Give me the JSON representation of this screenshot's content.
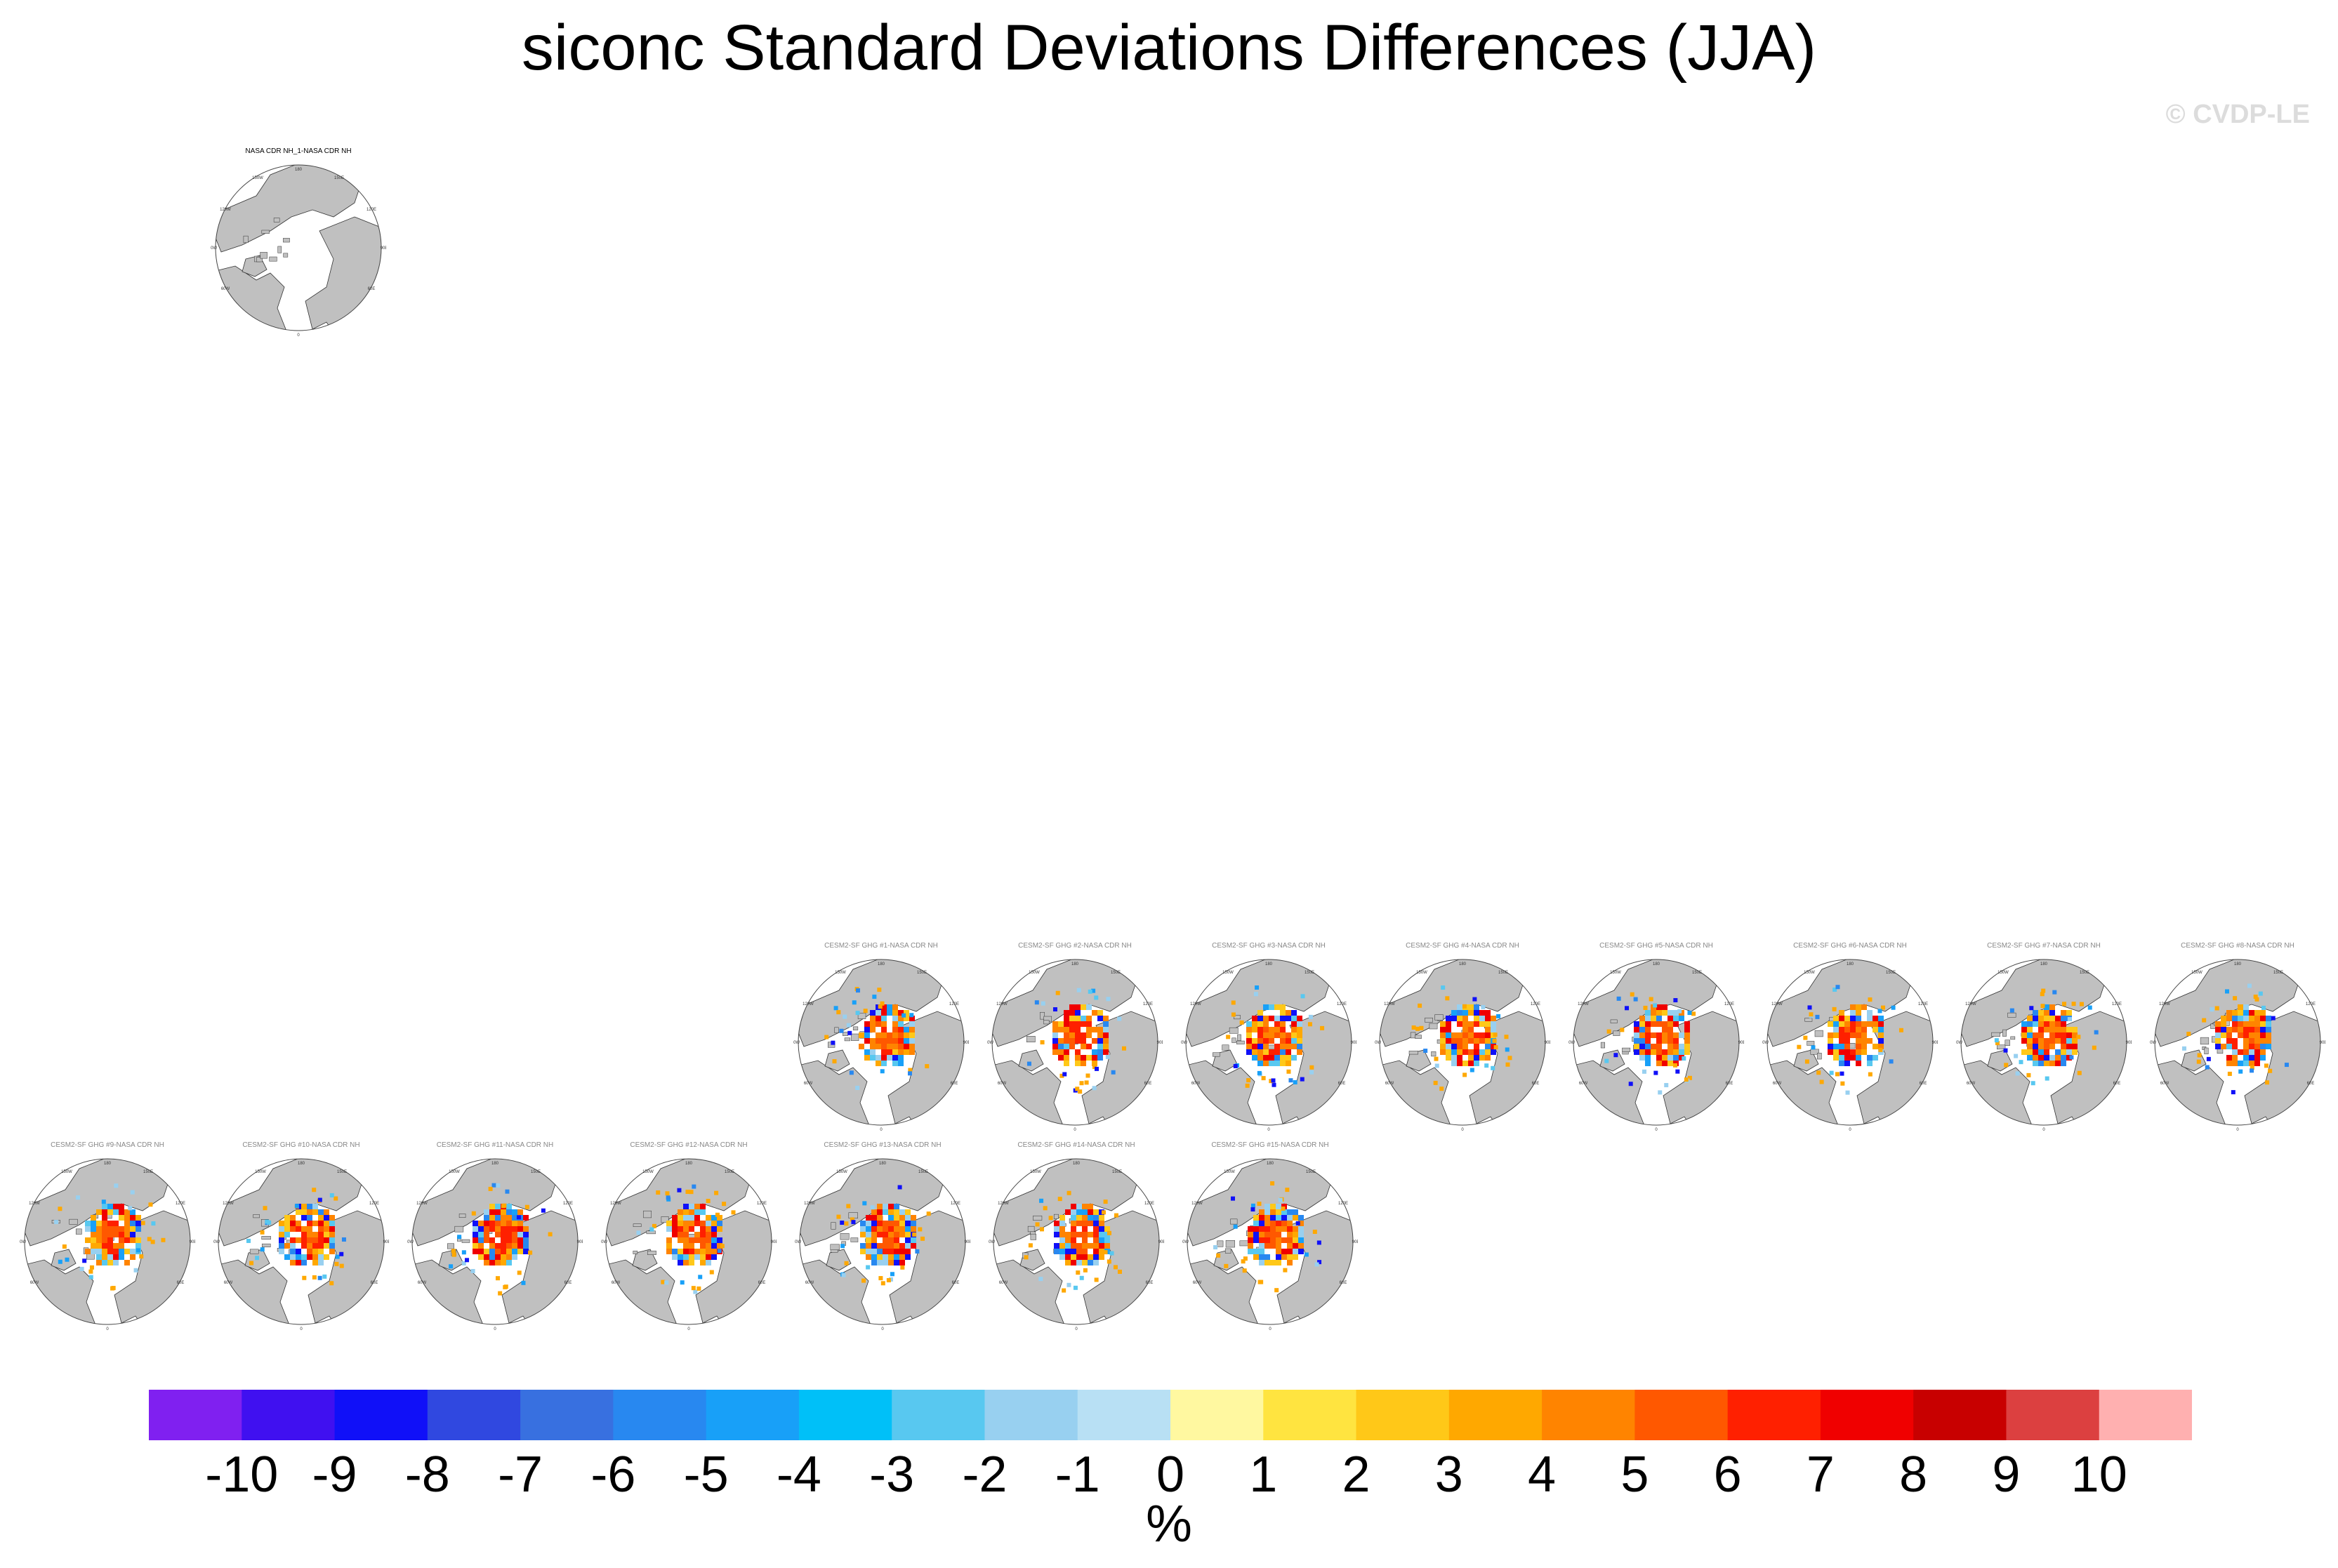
{
  "title": "siconc Standard Deviations Differences (JJA)",
  "credit": "© CVDP-LE",
  "chart_data": {
    "type": "heatmap",
    "title": "siconc Standard Deviations Differences (JJA)",
    "projection": "north polar stereographic",
    "panels": [
      {
        "title": "NASA CDR NH_1-NASA CDR NH",
        "kind": "observation"
      },
      {
        "title": "CESM2-SF GHG #1-NASA CDR NH",
        "kind": "member"
      },
      {
        "title": "CESM2-SF GHG #2-NASA CDR NH",
        "kind": "member"
      },
      {
        "title": "CESM2-SF GHG #3-NASA CDR NH",
        "kind": "member"
      },
      {
        "title": "CESM2-SF GHG #4-NASA CDR NH",
        "kind": "member"
      },
      {
        "title": "CESM2-SF GHG #5-NASA CDR NH",
        "kind": "member"
      },
      {
        "title": "CESM2-SF GHG #6-NASA CDR NH",
        "kind": "member"
      },
      {
        "title": "CESM2-SF GHG #7-NASA CDR NH",
        "kind": "member"
      },
      {
        "title": "CESM2-SF GHG #8-NASA CDR NH",
        "kind": "member"
      },
      {
        "title": "CESM2-SF GHG #9-NASA CDR NH",
        "kind": "member"
      },
      {
        "title": "CESM2-SF GHG #10-NASA CDR NH",
        "kind": "member"
      },
      {
        "title": "CESM2-SF GHG #11-NASA CDR NH",
        "kind": "member"
      },
      {
        "title": "CESM2-SF GHG #12-NASA CDR NH",
        "kind": "member"
      },
      {
        "title": "CESM2-SF GHG #13-NASA CDR NH",
        "kind": "member"
      },
      {
        "title": "CESM2-SF GHG #14-NASA CDR NH",
        "kind": "member"
      },
      {
        "title": "CESM2-SF GHG #15-NASA CDR NH",
        "kind": "member"
      }
    ],
    "map_labels": [
      "180",
      "150W",
      "150E",
      "120W",
      "120E",
      "90W",
      "90E",
      "60W",
      "60E",
      "0"
    ],
    "colorbar": {
      "ticks": [
        "-10",
        "-9",
        "-8",
        "-7",
        "-6",
        "-5",
        "-4",
        "-3",
        "-2",
        "-1",
        "0",
        "1",
        "2",
        "3",
        "4",
        "5",
        "6",
        "7",
        "8",
        "9",
        "10"
      ],
      "colors": [
        "#8020f0",
        "#4010f0",
        "#1010f8",
        "#3048e0",
        "#3870e0",
        "#2888f0",
        "#18a0f8",
        "#00c0f8",
        "#58c8f0",
        "#98d0f0",
        "#b8e0f4",
        "#fff8a0",
        "#ffe440",
        "#ffc818",
        "#ffa800",
        "#ff8400",
        "#ff5800",
        "#ff2000",
        "#f00000",
        "#c80000",
        "#dc4040",
        "#ffb0b0"
      ],
      "units": "%"
    }
  }
}
